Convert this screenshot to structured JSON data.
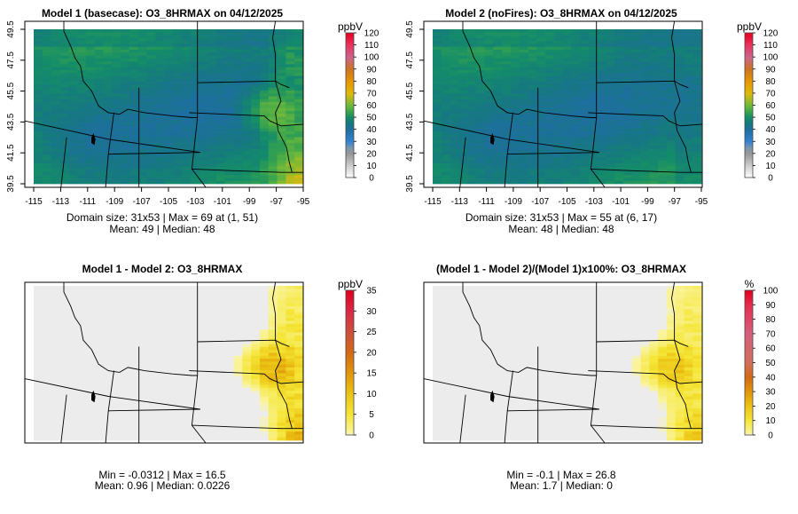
{
  "chart_data": [
    {
      "type": "heatmap",
      "title": "Model 1 (basecase): O3_8HRMAX on 04/12/2025",
      "field": "basecase",
      "colorbar_unit": "ppbV",
      "colorbar_ticks": [
        "0",
        "10",
        "20",
        "30",
        "40",
        "50",
        "60",
        "70",
        "80",
        "90",
        "100",
        "110",
        "120"
      ],
      "colorbar_range": [
        0,
        120
      ],
      "xticks": [
        "-115",
        "-113",
        "-111",
        "-109",
        "-107",
        "-105",
        "-103",
        "-101",
        "-99",
        "-97",
        "-95"
      ],
      "yticks": [
        "39.5",
        "41.5",
        "43.5",
        "45.5",
        "47.5",
        "49.5"
      ],
      "xlim": [
        -115,
        -95
      ],
      "ylim": [
        39.5,
        49.5
      ],
      "stats_line1": "Domain size: 31x53 | Max = 69 at (1, 51)",
      "stats_line2": "Mean: 49 |  Median: 48",
      "domain_size": "31x53",
      "max": 69,
      "mean": 49,
      "median": 48
    },
    {
      "type": "heatmap",
      "title": "Model 2 (noFires): O3_8HRMAX on 04/12/2025",
      "field": "nofires",
      "colorbar_unit": "ppbV",
      "colorbar_ticks": [
        "0",
        "10",
        "20",
        "30",
        "40",
        "50",
        "60",
        "70",
        "80",
        "90",
        "100",
        "110",
        "120"
      ],
      "colorbar_range": [
        0,
        120
      ],
      "xticks": [
        "-115",
        "-113",
        "-111",
        "-109",
        "-107",
        "-105",
        "-103",
        "-101",
        "-99",
        "-97",
        "-95"
      ],
      "yticks": [
        "39.5",
        "41.5",
        "43.5",
        "45.5",
        "47.5",
        "49.5"
      ],
      "xlim": [
        -115,
        -95
      ],
      "ylim": [
        39.5,
        49.5
      ],
      "stats_line1": "Domain size: 31x53 | Max = 55 at (6, 17)",
      "stats_line2": "Mean: 48 |  Median: 48",
      "domain_size": "31x53",
      "max": 55,
      "mean": 48,
      "median": 48
    },
    {
      "type": "heatmap",
      "title": "Model 1 - Model 2: O3_8HRMAX",
      "field": "diff",
      "colorbar_unit": "ppbV",
      "colorbar_ticks": [
        "0",
        "5",
        "10",
        "15",
        "20",
        "25",
        "30",
        "35"
      ],
      "colorbar_range": [
        0,
        35
      ],
      "stats_line1": "Min = -0.0312 | Max = 16.5",
      "stats_line2": "Mean: 0.96 |  Median: 0.0226",
      "min": -0.0312,
      "max": 16.5,
      "mean": 0.96,
      "median": 0.0226
    },
    {
      "type": "heatmap",
      "title": "(Model 1 - Model 2)/(Model 1)x100%: O3_8HRMAX",
      "field": "pct",
      "colorbar_unit": "%",
      "colorbar_ticks": [
        "0",
        "10",
        "20",
        "30",
        "40",
        "50",
        "60",
        "70",
        "80",
        "90",
        "100"
      ],
      "colorbar_range": [
        0,
        100
      ],
      "stats_line1": "Min = -0.1 | Max = 26.8",
      "stats_line2": "Mean: 1.7 |  Median: 0",
      "min": -0.1,
      "max": 26.8,
      "mean": 1.7,
      "median": 0
    }
  ],
  "colors": {
    "background": "#ffffff",
    "state_lines": "#000000",
    "no_change": "#e6e6e6"
  }
}
